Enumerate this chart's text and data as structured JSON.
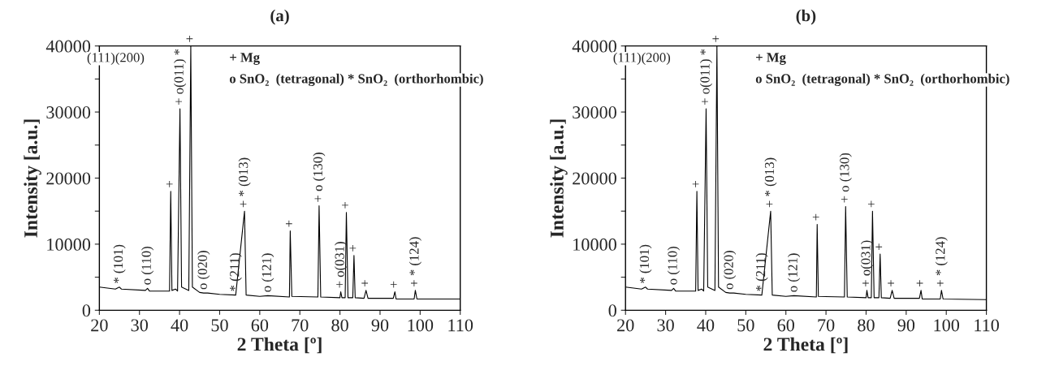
{
  "chart_data": [
    {
      "type": "line",
      "title": "(a)",
      "xlabel": "2 Theta [º]",
      "ylabel": "Intensity [a.u.]",
      "xlim": [
        20,
        110
      ],
      "ylim": [
        0,
        40000
      ],
      "xticks": [
        20,
        30,
        40,
        50,
        60,
        70,
        80,
        90,
        100,
        110
      ],
      "yticks": [
        0,
        {
          "value": 5000,
          "label": null
        },
        10000,
        {
          "value": 15000,
          "label": null
        },
        20000,
        {
          "value": 25000,
          "label": null
        },
        30000,
        {
          "value": 35000,
          "label": null
        },
        40000
      ],
      "series": [
        {
          "color": "#000000",
          "x": [
            20,
            24,
            25,
            25.5,
            31.5,
            32,
            32.5,
            37.5,
            37.8,
            38.1,
            39,
            39.5,
            40.1,
            40.5,
            42.3,
            42.8,
            43.2,
            45,
            46,
            47,
            50,
            54,
            56.2,
            56.6,
            60,
            62,
            67.4,
            67.6,
            68,
            74.5,
            74.8,
            75.2,
            80,
            80.2,
            80.5,
            81.3,
            81.6,
            82,
            83.2,
            83.5,
            83.8,
            86,
            86.5,
            87,
            93.3,
            93.7,
            94,
            98.5,
            98.8,
            99.2,
            110
          ],
          "values": [
            3500,
            3200,
            3500,
            3200,
            3000,
            3300,
            2900,
            2900,
            18000,
            3000,
            3200,
            2900,
            30500,
            3500,
            3000,
            40000,
            3500,
            2700,
            2600,
            2600,
            2400,
            2300,
            15000,
            2300,
            2100,
            2200,
            2000,
            12000,
            2100,
            2000,
            15800,
            2000,
            1900,
            2800,
            1900,
            1900,
            14800,
            1900,
            1900,
            8300,
            1900,
            1800,
            3000,
            1800,
            1800,
            2800,
            1700,
            1700,
            3000,
            1700,
            1700
          ]
        }
      ],
      "annotations": [
        "(111)(200)",
        "+ Mg",
        "o SnO₂  (tetragonal) * SnO₂  (orthorhombic)",
        {
          "text": "* (101)",
          "x": 25,
          "y": 3500
        },
        {
          "text": "o (110)",
          "x": 32,
          "y": 3300
        },
        {
          "text": "+",
          "x": 37.8,
          "y": 18000
        },
        {
          "text": "+ o(011) *",
          "x": 40.1,
          "y": 30500
        },
        {
          "text": "+",
          "x": 42.8,
          "y": 40000
        },
        {
          "text": "o (020)",
          "x": 46,
          "y": 2600
        },
        {
          "text": "* (211)",
          "x": 54,
          "y": 2300
        },
        {
          "text": "+ * (013)",
          "x": 56.2,
          "y": 15000
        },
        {
          "text": "o (121)",
          "x": 62,
          "y": 2200
        },
        {
          "text": "+",
          "x": 67.6,
          "y": 12000
        },
        {
          "text": "+ o (130)",
          "x": 74.8,
          "y": 15800
        },
        {
          "text": "+ o(031)",
          "x": 80.2,
          "y": 2800
        },
        {
          "text": "+",
          "x": 81.6,
          "y": 14800
        },
        {
          "text": "+",
          "x": 83.5,
          "y": 8300
        },
        {
          "text": "+",
          "x": 86.5,
          "y": 3000
        },
        {
          "text": "+",
          "x": 93.7,
          "y": 2800
        },
        {
          "text": "+ * (124)",
          "x": 98.8,
          "y": 3000
        }
      ]
    },
    {
      "type": "line",
      "title": "(b)",
      "xlabel": "2 Theta [º]",
      "ylabel": "Intensity [a.u.]",
      "xlim": [
        20,
        110
      ],
      "ylim": [
        0,
        40000
      ],
      "xticks": [
        20,
        30,
        40,
        50,
        60,
        70,
        80,
        90,
        100,
        110
      ],
      "yticks": [
        0,
        {
          "value": 5000,
          "label": null
        },
        10000,
        {
          "value": 15000,
          "label": null
        },
        20000,
        {
          "value": 25000,
          "label": null
        },
        30000,
        {
          "value": 35000,
          "label": null
        },
        40000
      ],
      "series": [
        {
          "color": "#000000",
          "x": [
            20,
            24,
            25,
            25.5,
            31.5,
            32,
            32.5,
            37.5,
            37.8,
            38.1,
            39,
            39.5,
            40.1,
            40.5,
            42.3,
            42.8,
            43.2,
            45,
            46,
            47,
            50,
            54,
            56.2,
            56.6,
            60,
            62,
            67.6,
            67.8,
            68.1,
            74.6,
            74.9,
            75.3,
            80,
            80.2,
            80.5,
            81.3,
            81.6,
            82,
            83.2,
            83.5,
            83.8,
            86,
            86.5,
            87,
            93.3,
            93.7,
            94,
            98.5,
            98.8,
            99.2,
            110
          ],
          "values": [
            3500,
            3200,
            3500,
            3200,
            3000,
            3300,
            2900,
            2900,
            18000,
            3000,
            3200,
            2900,
            30500,
            3500,
            3000,
            40000,
            3500,
            2700,
            2600,
            2600,
            2400,
            2300,
            15000,
            2300,
            2100,
            2200,
            2000,
            13000,
            2100,
            2000,
            15700,
            2000,
            1900,
            3000,
            1900,
            1900,
            15000,
            1900,
            1900,
            8500,
            1900,
            1800,
            3000,
            1800,
            1800,
            3000,
            1700,
            1700,
            3000,
            1700,
            1600
          ]
        }
      ],
      "annotations": [
        "(111)(200)",
        "+ Mg",
        "o SnO₂  (tetragonal) * SnO₂  (orthorhombic)",
        {
          "text": "* (101)",
          "x": 25,
          "y": 3500
        },
        {
          "text": "o (110)",
          "x": 32,
          "y": 3300
        },
        {
          "text": "+",
          "x": 37.8,
          "y": 18000
        },
        {
          "text": "+ o(011) *",
          "x": 40.1,
          "y": 30500
        },
        {
          "text": "+",
          "x": 42.8,
          "y": 40000
        },
        {
          "text": "o (020)",
          "x": 46,
          "y": 2600
        },
        {
          "text": "* (211)",
          "x": 54,
          "y": 2300
        },
        {
          "text": "+ * (013)",
          "x": 56.2,
          "y": 15000
        },
        {
          "text": "o (121)",
          "x": 62,
          "y": 2200
        },
        {
          "text": "+",
          "x": 67.8,
          "y": 13000
        },
        {
          "text": "+ o (130)",
          "x": 74.9,
          "y": 15700
        },
        {
          "text": "+ o(031)",
          "x": 80.2,
          "y": 3000
        },
        {
          "text": "+",
          "x": 81.6,
          "y": 15000
        },
        {
          "text": "+",
          "x": 83.5,
          "y": 8500
        },
        {
          "text": "+",
          "x": 86.5,
          "y": 3000
        },
        {
          "text": "+",
          "x": 93.7,
          "y": 3000
        },
        {
          "text": "+ * (124)",
          "x": 98.8,
          "y": 3000
        }
      ]
    }
  ]
}
